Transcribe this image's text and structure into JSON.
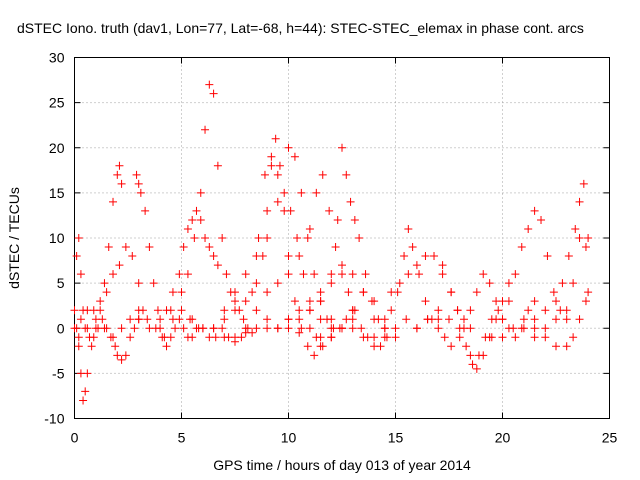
{
  "chart_data": {
    "type": "scatter",
    "title": "dSTEC Iono. truth (dav1, Lon=77, Lat=-68, h=44): STEC-STEC_elemax in phase cont. arcs",
    "xlabel": "GPS time / hours of day 013 of year 2014",
    "ylabel": "dSTEC  / TECUs",
    "xlim": [
      0,
      25
    ],
    "ylim": [
      -10,
      30
    ],
    "x_ticks": [
      "0",
      "5",
      "10",
      "15",
      "20",
      "25"
    ],
    "y_ticks": [
      "-10",
      "-5",
      "0",
      "5",
      "10",
      "15",
      "20",
      "25",
      "30"
    ],
    "grid": true,
    "marker": "plus",
    "color": "#ff0000",
    "series": [
      {
        "x": [
          0.0,
          0.1,
          0.2,
          0.3,
          0.4,
          0.5,
          0.7,
          0.9,
          1.1,
          1.3,
          1.5,
          1.7,
          1.9,
          2.0,
          2.2,
          2.4,
          2.6,
          2.8,
          3.0
        ],
        "y": [
          2,
          8,
          10,
          6,
          2,
          0,
          -1,
          -1,
          0,
          1,
          0,
          -1,
          -2,
          -3,
          -3.5,
          -3,
          -1,
          0,
          1
        ]
      },
      {
        "x": [
          0.1,
          0.2,
          0.3,
          0.4,
          0.5,
          0.6,
          0.8,
          1.0,
          1.2,
          1.4,
          1.6,
          1.8,
          2.0,
          2.1,
          2.2
        ],
        "y": [
          0,
          -2,
          -5,
          -8,
          -7,
          -5,
          -2,
          0,
          2,
          5,
          9,
          14,
          17,
          18,
          16
        ]
      },
      {
        "x": [
          0.0,
          0.3,
          0.6,
          0.9,
          1.2,
          1.5,
          1.8,
          2.1,
          2.4,
          2.7,
          3.0,
          3.2
        ],
        "y": [
          0,
          1,
          2,
          2,
          3,
          4,
          6,
          7,
          9,
          8,
          5,
          2
        ]
      },
      {
        "x": [
          2.9,
          3.0,
          3.1,
          3.3,
          3.5,
          3.7,
          3.9,
          4.1,
          4.3,
          4.5,
          4.7,
          4.9,
          5.1,
          5.3,
          5.5,
          5.7,
          6.0,
          6.3,
          6.6,
          6.9,
          7.2,
          7.5,
          7.8
        ],
        "y": [
          17,
          16,
          15,
          13,
          9,
          5,
          2,
          -1,
          -2,
          -1,
          0,
          1,
          0,
          -1,
          -1,
          0,
          0,
          -1,
          -1,
          0,
          -1,
          -1.5,
          -1
        ]
      },
      {
        "x": [
          3.0,
          3.5,
          4.0,
          4.5,
          5.0,
          5.3,
          5.6,
          5.9,
          6.1,
          6.3,
          6.5,
          6.7,
          6.9,
          7.1,
          7.3,
          7.5,
          7.7,
          7.9,
          8.1,
          8.3
        ],
        "y": [
          1,
          0,
          1,
          2,
          4,
          6,
          10,
          15,
          22,
          27,
          26,
          18,
          10,
          6,
          4,
          3,
          2,
          1,
          0,
          -0.5
        ]
      },
      {
        "x": [
          4.0,
          4.3,
          4.6,
          4.9,
          5.1,
          5.3,
          5.5,
          5.7,
          5.9,
          6.1,
          6.3,
          6.5,
          6.7
        ],
        "y": [
          0,
          2,
          4,
          6,
          9,
          11,
          12,
          13,
          12,
          10,
          9,
          8,
          7
        ]
      },
      {
        "x": [
          5.5,
          6.0,
          6.5,
          7.0,
          7.5,
          8.0,
          8.5,
          8.8,
          9.0,
          9.2,
          9.4,
          9.6,
          9.8,
          10.0,
          10.3,
          10.6,
          10.9,
          11.2,
          11.5
        ],
        "y": [
          1,
          0,
          0,
          1,
          2,
          3,
          5,
          8,
          13,
          18,
          21,
          18,
          13,
          8,
          3,
          0,
          -2,
          -3,
          -2
        ]
      },
      {
        "x": [
          7.0,
          7.5,
          8.0,
          8.3,
          8.6,
          8.9,
          9.2,
          9.5,
          9.8,
          10.1,
          10.4,
          10.7,
          11.0,
          11.3,
          11.6,
          12.0
        ],
        "y": [
          -1,
          -1,
          0,
          4,
          10,
          17,
          19,
          17,
          15,
          13,
          10,
          6,
          2,
          -1,
          -2,
          -1
        ]
      },
      {
        "x": [
          6.5,
          7.0,
          7.5,
          8.0,
          8.5,
          9.0,
          9.5,
          10.0,
          10.3,
          10.6,
          10.9,
          11.2,
          11.5,
          11.8,
          12.1,
          12.4,
          12.7,
          13.0
        ],
        "y": [
          0,
          2,
          4,
          6,
          8,
          10,
          14,
          20,
          19,
          15,
          10,
          6,
          3,
          1,
          0,
          0,
          1,
          2
        ]
      },
      {
        "x": [
          8.5,
          9.0,
          9.5,
          10.0,
          10.5,
          11.0,
          11.3,
          11.6,
          11.9,
          12.2,
          12.5,
          12.8,
          13.1,
          13.4,
          13.7,
          14.0
        ],
        "y": [
          2,
          4,
          5,
          6,
          8,
          11,
          15,
          17,
          13,
          9,
          6,
          4,
          2,
          0,
          -1,
          -1
        ]
      },
      {
        "x": [
          10.0,
          10.5,
          11.0,
          11.5,
          12.0,
          12.3,
          12.5,
          12.7,
          12.9,
          13.1,
          13.3,
          13.6,
          13.9,
          14.2,
          14.5
        ],
        "y": [
          1,
          2,
          3,
          4,
          6,
          12,
          20,
          17,
          14,
          12,
          10,
          6,
          3,
          1,
          0
        ]
      },
      {
        "x": [
          9.0,
          9.5,
          10.0,
          10.5,
          11.0,
          11.5,
          12.0,
          12.5,
          13.0,
          13.5,
          14.0,
          14.5,
          15.0
        ],
        "y": [
          0,
          0,
          1,
          1,
          2,
          3,
          5,
          7,
          6,
          4,
          1,
          -1,
          -1
        ]
      },
      {
        "x": [
          11.5,
          12.0,
          12.5,
          13.0,
          13.5,
          14.0,
          14.3,
          14.6
        ],
        "y": [
          -1,
          -1,
          0,
          0,
          -1,
          -2,
          -2,
          -1
        ]
      },
      {
        "x": [
          14.5,
          14.8,
          15.1,
          15.4,
          15.6,
          15.8,
          16.1,
          16.4,
          16.7,
          17.0,
          17.3,
          17.6,
          18.0
        ],
        "y": [
          0,
          2,
          4,
          8,
          11,
          9,
          6,
          3,
          1,
          0,
          -1,
          -2,
          -1
        ]
      },
      {
        "x": [
          14.8,
          15.2,
          15.6,
          16.0,
          16.4,
          16.8,
          17.2,
          17.6,
          17.9,
          18.2,
          18.5
        ],
        "y": [
          4,
          5,
          6,
          7,
          8,
          8,
          7,
          4,
          2,
          1,
          0
        ]
      },
      {
        "x": [
          16.0,
          16.5,
          17.0,
          17.5,
          18.0,
          18.3,
          18.6,
          18.9,
          19.2,
          19.5,
          19.8
        ],
        "y": [
          0,
          1,
          2,
          1,
          0,
          -2,
          -4,
          -3,
          -1,
          1,
          2
        ]
      },
      {
        "x": [
          17.2,
          17.6,
          17.9,
          18.2,
          18.5,
          18.8,
          19.1,
          19.4,
          19.7,
          20.0,
          20.3
        ],
        "y": [
          6,
          4,
          2,
          0,
          -3,
          -4.5,
          -3,
          -1,
          1,
          3,
          5
        ]
      },
      {
        "x": [
          18.5,
          18.8,
          19.1,
          19.4,
          19.7,
          20.0,
          20.3,
          20.6,
          20.9,
          21.2,
          21.5
        ],
        "y": [
          2,
          4,
          6,
          5,
          3,
          1,
          0,
          -1,
          0,
          2,
          3
        ]
      },
      {
        "x": [
          20.0,
          20.3,
          20.6,
          20.9,
          21.2,
          21.5,
          21.8,
          22.1,
          22.4,
          22.7,
          23.0
        ],
        "y": [
          1,
          3,
          6,
          9,
          11,
          13,
          12,
          8,
          4,
          2,
          1
        ]
      },
      {
        "x": [
          19.5,
          20.0,
          20.5,
          21.0,
          21.5,
          22.0,
          22.5,
          23.0,
          23.3,
          23.6,
          23.9
        ],
        "y": [
          -1,
          -1,
          0,
          1,
          0,
          0,
          1,
          2,
          5,
          10,
          9
        ]
      },
      {
        "x": [
          21.0,
          21.5,
          22.0,
          22.5,
          22.8,
          23.1,
          23.4,
          23.6,
          23.8,
          24.0
        ],
        "y": [
          0,
          1,
          2,
          3,
          5,
          8,
          11,
          14,
          16,
          10
        ]
      },
      {
        "x": [
          21.5,
          22.0,
          22.5,
          23.0,
          23.3,
          23.6,
          23.9,
          24.0
        ],
        "y": [
          -1,
          -1,
          -2,
          -2,
          -1,
          1,
          3,
          4
        ]
      },
      {
        "x": [
          0.2,
          0.6,
          1.0,
          1.4,
          1.8,
          2.2,
          2.6,
          3.0,
          3.4,
          3.8,
          4.2,
          4.6,
          5.0,
          5.4,
          5.8
        ],
        "y": [
          -1,
          0,
          1,
          0,
          -1,
          0,
          1,
          2,
          1,
          0,
          -1,
          1,
          2,
          1,
          0
        ]
      },
      {
        "x": [
          12.0,
          12.5,
          13.0,
          13.5,
          14.0,
          14.5,
          15.0,
          15.5,
          16.0,
          16.5,
          17.0
        ],
        "y": [
          1,
          0,
          2,
          4,
          3,
          1,
          0,
          1,
          0,
          1,
          1
        ]
      },
      {
        "x": [
          8.0,
          8.5,
          9.0,
          9.5,
          10.0,
          10.5,
          11.0,
          11.5,
          12.0,
          12.5,
          13.0
        ],
        "y": [
          -0.5,
          0,
          1,
          0,
          0,
          -0.5,
          0,
          1,
          0,
          0,
          1
        ]
      }
    ]
  }
}
